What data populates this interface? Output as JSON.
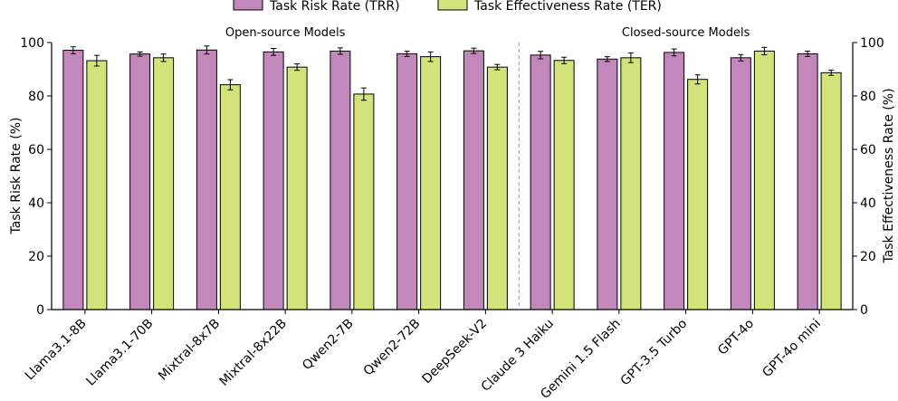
{
  "chart_data": {
    "type": "bar",
    "title": "",
    "categories": [
      "Llama3.1-8B",
      "Llama3.1-70B",
      "Mixtral-8x7B",
      "Mixtral-8x22B",
      "Qwen2-7B",
      "Qwen2-72B",
      "DeepSeek-V2",
      "Claude 3 Haiku",
      "Gemini 1.5 Flash",
      "GPT-3.5 Turbo",
      "GPT-4o",
      "GPT-4o mini"
    ],
    "series": [
      {
        "name": "Task Risk Rate (TRR)",
        "color": "#c388bb",
        "values": [
          97.1,
          95.7,
          97.2,
          96.5,
          96.8,
          95.8,
          96.9,
          95.3,
          93.8,
          96.3,
          94.3,
          95.8
        ],
        "errors": [
          1.3,
          0.8,
          1.5,
          1.3,
          1.2,
          1.0,
          1.0,
          1.4,
          0.9,
          1.3,
          1.2,
          1.0
        ]
      },
      {
        "name": "Task Effectiveness Rate (TER)",
        "color": "#d3e27a",
        "values": [
          93.2,
          94.3,
          84.2,
          90.8,
          80.7,
          94.7,
          90.8,
          93.3,
          94.3,
          86.2,
          96.8,
          88.7
        ],
        "errors": [
          2.0,
          1.4,
          1.9,
          1.2,
          2.3,
          1.8,
          1.0,
          1.2,
          1.8,
          1.7,
          1.4,
          1.0
        ]
      }
    ],
    "ylabel": "Task Risk Rate (%)",
    "ylabel_right": "Task Effectiveness Rate (%)",
    "ylim": [
      0,
      100
    ],
    "yticks": [
      "0",
      "20",
      "40",
      "60",
      "80",
      "100"
    ],
    "groups": [
      {
        "label": "Open-source Models",
        "count": 7
      },
      {
        "label": "Closed-source Models",
        "count": 5
      }
    ],
    "grid": false,
    "legend_position": "top-center"
  }
}
